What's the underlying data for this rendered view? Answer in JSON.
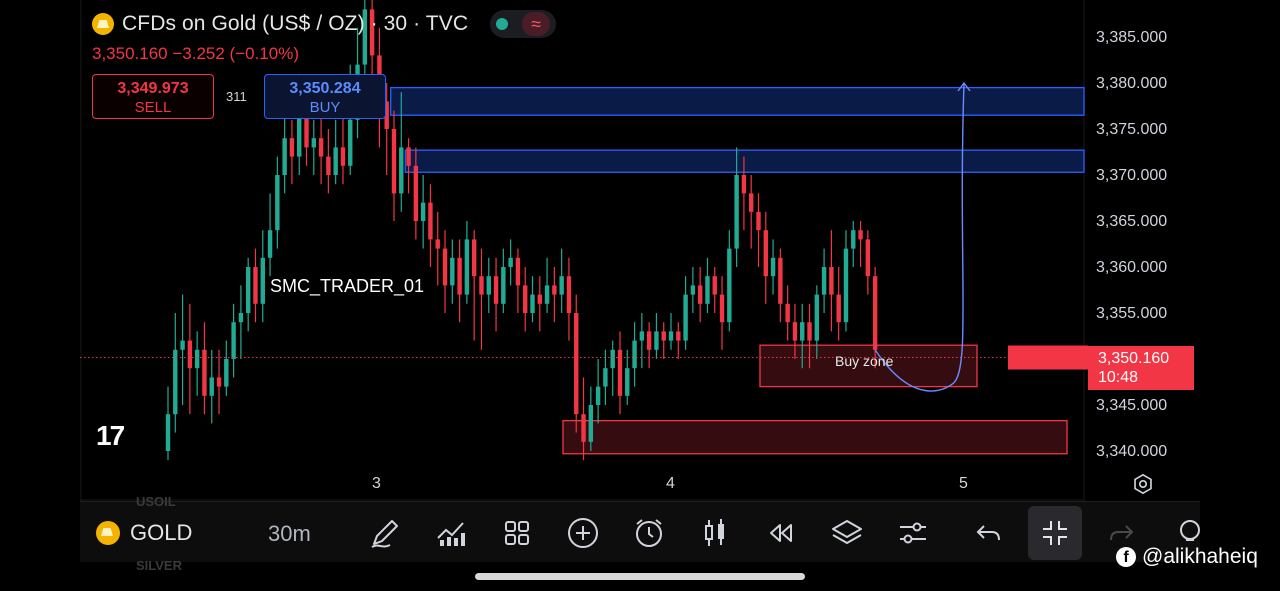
{
  "header": {
    "title": "CFDs on Gold (US$ / OZ) · 30 · TVC",
    "quote": "3,350.160  −3.252 (−0.10%)"
  },
  "trade": {
    "sell_price": "3,349.973",
    "sell_label": "SELL",
    "buy_price": "3,350.284",
    "buy_label": "BUY",
    "spread": "311"
  },
  "watermark": "SMC_TRADER_01",
  "tv_logo": "17",
  "price_axis": [
    "3,385.000",
    "3,380.000",
    "3,375.000",
    "3,370.000",
    "3,365.000",
    "3,360.000",
    "3,355.000",
    "3,350.000",
    "3,345.000",
    "3,340.000"
  ],
  "current_price": {
    "price": "3,350.160",
    "countdown": "10:48"
  },
  "time_axis": [
    "3",
    "4",
    "5"
  ],
  "zones": {
    "buy_zone_label": "Buy zone"
  },
  "toolbar": {
    "symbol": "GOLD",
    "interval": "30m",
    "ghost_top": "USOIL",
    "ghost_bottom": "SILVER"
  },
  "credit": "@alikhaheiq",
  "colors": {
    "up": "#22ab94",
    "down": "#f23645",
    "zone_blue": "#2962ff",
    "zone_red": "#f23645"
  },
  "chart_data": {
    "type": "candlestick",
    "ylim": [
      3338,
      3389
    ],
    "yticks": [
      3385,
      3380,
      3375,
      3370,
      3365,
      3360,
      3355,
      3350,
      3345,
      3340
    ],
    "x_labels": [
      "3",
      "4",
      "5"
    ],
    "candles": [
      [
        3340,
        3344,
        3339,
        3347
      ],
      [
        3344,
        3351,
        3342,
        3355
      ],
      [
        3351,
        3352,
        3345,
        3357
      ],
      [
        3352,
        3349,
        3344,
        3356
      ],
      [
        3349,
        3351,
        3346,
        3353
      ],
      [
        3351,
        3346,
        3344,
        3354
      ],
      [
        3346,
        3348,
        3343,
        3351
      ],
      [
        3348,
        3347,
        3344,
        3351
      ],
      [
        3347,
        3350,
        3346,
        3352
      ],
      [
        3350,
        3354,
        3348,
        3356
      ],
      [
        3354,
        3355,
        3350,
        3358
      ],
      [
        3355,
        3360,
        3353,
        3361
      ],
      [
        3360,
        3356,
        3354,
        3362
      ],
      [
        3356,
        3361,
        3354,
        3364
      ],
      [
        3361,
        3364,
        3359,
        3368
      ],
      [
        3364,
        3370,
        3362,
        3372
      ],
      [
        3370,
        3374,
        3368,
        3377
      ],
      [
        3374,
        3372,
        3369,
        3376
      ],
      [
        3372,
        3378,
        3370,
        3381
      ],
      [
        3378,
        3373,
        3371,
        3380
      ],
      [
        3373,
        3374,
        3370,
        3376
      ],
      [
        3374,
        3372,
        3369,
        3377
      ],
      [
        3372,
        3370,
        3368,
        3375
      ],
      [
        3370,
        3373,
        3369,
        3376
      ],
      [
        3373,
        3371,
        3369,
        3378
      ],
      [
        3371,
        3376,
        3370,
        3382
      ],
      [
        3376,
        3382,
        3374,
        3386
      ],
      [
        3382,
        3388,
        3379,
        3392
      ],
      [
        3388,
        3383,
        3380,
        3393
      ],
      [
        3383,
        3378,
        3373,
        3386
      ],
      [
        3378,
        3375,
        3370,
        3380
      ],
      [
        3375,
        3368,
        3365,
        3377
      ],
      [
        3368,
        3373,
        3366,
        3379
      ],
      [
        3373,
        3371,
        3368,
        3374
      ],
      [
        3371,
        3365,
        3363,
        3373
      ],
      [
        3365,
        3367,
        3362,
        3370
      ],
      [
        3367,
        3363,
        3360,
        3369
      ],
      [
        3363,
        3362,
        3358,
        3366
      ],
      [
        3362,
        3358,
        3355,
        3364
      ],
      [
        3358,
        3361,
        3356,
        3363
      ],
      [
        3361,
        3357,
        3354,
        3363
      ],
      [
        3357,
        3363,
        3356,
        3365
      ],
      [
        3363,
        3359,
        3352,
        3364
      ],
      [
        3359,
        3357,
        3351,
        3362
      ],
      [
        3357,
        3359,
        3355,
        3361
      ],
      [
        3359,
        3356,
        3353,
        3361
      ],
      [
        3356,
        3360,
        3355,
        3362
      ],
      [
        3360,
        3361,
        3358,
        3363
      ],
      [
        3361,
        3358,
        3355,
        3362
      ],
      [
        3358,
        3355,
        3353,
        3360
      ],
      [
        3355,
        3357,
        3354,
        3359
      ],
      [
        3357,
        3356,
        3353,
        3359
      ],
      [
        3356,
        3358,
        3355,
        3361
      ],
      [
        3358,
        3357,
        3354,
        3360
      ],
      [
        3357,
        3359,
        3355,
        3362
      ],
      [
        3359,
        3355,
        3352,
        3361
      ],
      [
        3355,
        3344,
        3342,
        3357
      ],
      [
        3344,
        3341,
        3339,
        3348
      ],
      [
        3341,
        3345,
        3340,
        3347
      ],
      [
        3345,
        3347,
        3343,
        3350
      ],
      [
        3347,
        3349,
        3345,
        3351
      ],
      [
        3349,
        3351,
        3346,
        3352
      ],
      [
        3351,
        3346,
        3344,
        3353
      ],
      [
        3346,
        3349,
        3345,
        3351
      ],
      [
        3349,
        3352,
        3347,
        3354
      ],
      [
        3352,
        3353,
        3349,
        3355
      ],
      [
        3353,
        3351,
        3349,
        3354
      ],
      [
        3351,
        3353,
        3350,
        3355
      ],
      [
        3353,
        3352,
        3350,
        3354
      ],
      [
        3352,
        3353,
        3351,
        3355
      ],
      [
        3353,
        3352,
        3350,
        3354
      ],
      [
        3352,
        3357,
        3351,
        3359
      ],
      [
        3357,
        3358,
        3355,
        3360
      ],
      [
        3358,
        3356,
        3354,
        3360
      ],
      [
        3356,
        3359,
        3355,
        3361
      ],
      [
        3359,
        3357,
        3355,
        3360
      ],
      [
        3357,
        3354,
        3351,
        3359
      ],
      [
        3354,
        3362,
        3353,
        3364
      ],
      [
        3362,
        3370,
        3360,
        3373
      ],
      [
        3370,
        3368,
        3364,
        3372
      ],
      [
        3368,
        3366,
        3362,
        3370
      ],
      [
        3366,
        3364,
        3360,
        3368
      ],
      [
        3364,
        3359,
        3356,
        3366
      ],
      [
        3359,
        3361,
        3357,
        3363
      ],
      [
        3361,
        3356,
        3354,
        3362
      ],
      [
        3356,
        3354,
        3352,
        3358
      ],
      [
        3354,
        3352,
        3350,
        3356
      ],
      [
        3352,
        3354,
        3349,
        3356
      ],
      [
        3354,
        3352,
        3349,
        3356
      ],
      [
        3352,
        3357,
        3350,
        3358
      ],
      [
        3357,
        3360,
        3355,
        3362
      ],
      [
        3360,
        3357,
        3353,
        3364
      ],
      [
        3357,
        3354,
        3352,
        3360
      ],
      [
        3354,
        3362,
        3353,
        3364
      ],
      [
        3362,
        3364,
        3360,
        3365
      ],
      [
        3364,
        3363,
        3360,
        3365
      ],
      [
        3363,
        3359,
        3357,
        3364
      ],
      [
        3359,
        3351,
        3349,
        3360
      ]
    ],
    "zones": [
      {
        "type": "supply",
        "top": 3379.5,
        "bottom": 3376.5,
        "from_candle": 30,
        "color": "blue"
      },
      {
        "type": "supply",
        "top": 3372.7,
        "bottom": 3370.3,
        "from_candle": 32,
        "color": "blue"
      },
      {
        "type": "demand",
        "label": "Buy zone",
        "top": 3351.5,
        "bottom": 3347,
        "color": "red"
      },
      {
        "type": "demand",
        "top": 3343.3,
        "bottom": 3339.7,
        "color": "red"
      }
    ],
    "projection": {
      "from": 3351,
      "low": 3348,
      "to": 3380
    },
    "current_price": 3350.16
  }
}
